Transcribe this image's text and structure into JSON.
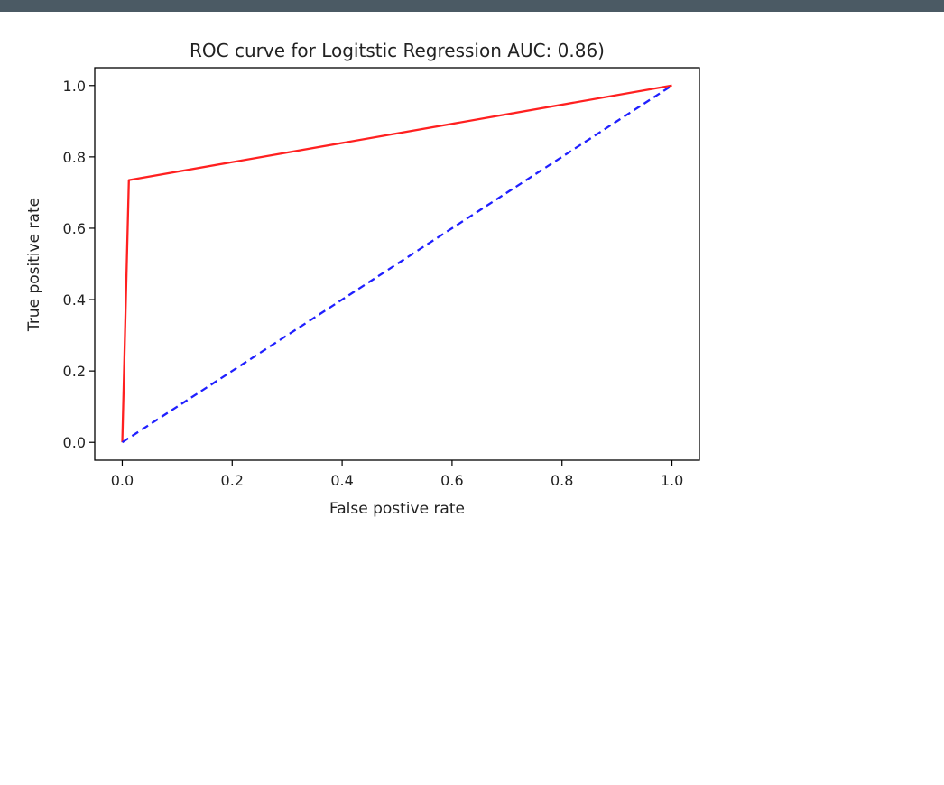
{
  "chart_data": {
    "type": "line",
    "title": "ROC curve for Logitstic Regression AUC: 0.86)",
    "xlabel": "False postive rate",
    "ylabel": "True positive rate",
    "xlim": [
      -0.05,
      1.05
    ],
    "ylim": [
      -0.05,
      1.05
    ],
    "xticks": [
      "0.0",
      "0.2",
      "0.4",
      "0.6",
      "0.8",
      "1.0"
    ],
    "yticks": [
      "0.0",
      "0.2",
      "0.4",
      "0.6",
      "0.8",
      "1.0"
    ],
    "grid": false,
    "series": [
      {
        "color": "#ff2020",
        "linestyle": "solid",
        "x": [
          0.0,
          0.012,
          1.0
        ],
        "y": [
          0.0,
          0.735,
          1.0
        ]
      },
      {
        "color": "#2020ff",
        "linestyle": "dashed",
        "x": [
          0.0,
          1.0
        ],
        "y": [
          0.0,
          1.0
        ]
      }
    ]
  }
}
